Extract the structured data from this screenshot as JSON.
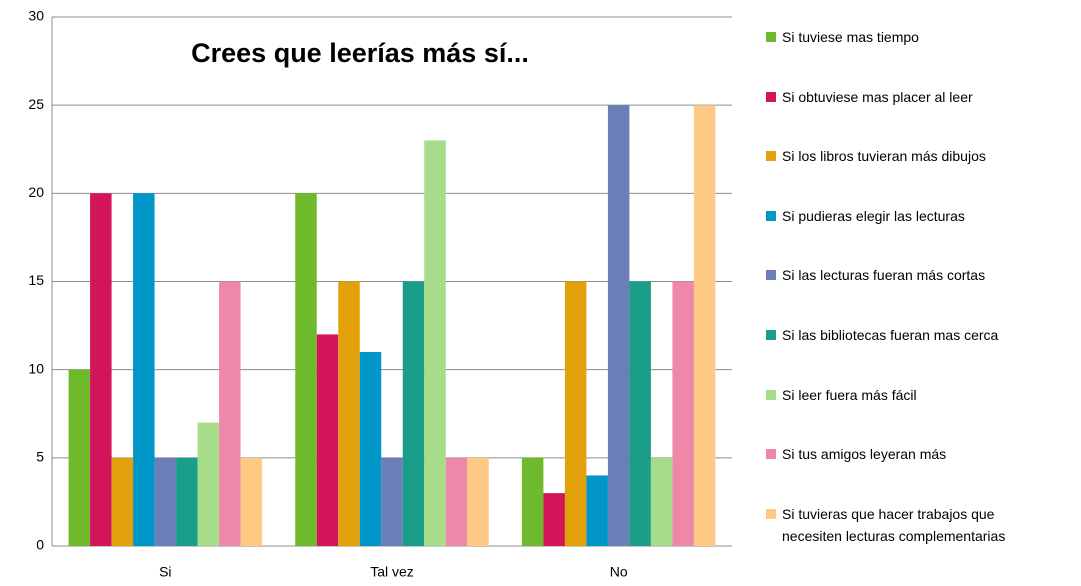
{
  "chart_data": {
    "type": "bar",
    "title": "Crees que leerías más sí...",
    "categories": [
      "Si",
      "Tal vez",
      "No"
    ],
    "series": [
      {
        "name": "Si tuviese mas tiempo",
        "color": "#6fba2c",
        "values": [
          10,
          20,
          5
        ]
      },
      {
        "name": "Si obtuviese mas placer al leer",
        "color": "#d3145a",
        "values": [
          20,
          12,
          3
        ]
      },
      {
        "name": "Si los libros tuvieran más dibujos",
        "color": "#e2a00a",
        "values": [
          5,
          15,
          15
        ]
      },
      {
        "name": "Si pudieras elegir las lecturas",
        "color": "#0096c8",
        "values": [
          20,
          11,
          4
        ]
      },
      {
        "name": "Si las lecturas fueran más cortas",
        "color": "#6a7fb8",
        "values": [
          5,
          5,
          25
        ]
      },
      {
        "name": "Si las bibliotecas fueran mas cerca",
        "color": "#1a9e8a",
        "values": [
          5,
          15,
          15
        ]
      },
      {
        "name": "Si leer fuera más fácil",
        "color": "#a6dc8a",
        "values": [
          7,
          23,
          5
        ]
      },
      {
        "name": "Si tus amigos leyeran más",
        "color": "#ee88a8",
        "values": [
          15,
          5,
          15
        ]
      },
      {
        "name": "Si tuvieras que hacer trabajos que necesiten lecturas complementarias",
        "color": "#fdc985",
        "values": [
          5,
          5,
          25
        ]
      }
    ],
    "ylim": [
      0,
      30
    ],
    "yticks": [
      0,
      5,
      10,
      15,
      20,
      25,
      30
    ],
    "grid": true,
    "legend": "right"
  }
}
